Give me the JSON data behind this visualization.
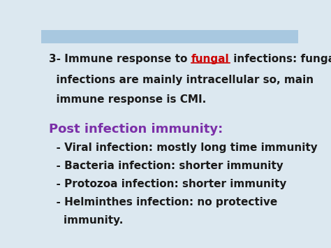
{
  "background_color": "#dce8f0",
  "header_bar_color": "#a8c8e0",
  "text_color_main": "#1a1a1a",
  "text_color_fungal": "#cc0000",
  "text_color_heading": "#7b2fa8",
  "line1_normal": "3- Immune response to ",
  "line1_fungal": "fungal",
  "line1_rest": " infections: fungal",
  "line2": "  infections are mainly intracellular so, main",
  "line3": "  immune response is CMI.",
  "heading": "Post infection immunity:",
  "bullet1": "  - Viral infection: mostly long time immunity",
  "bullet2": "  - Bacteria infection: shorter immunity",
  "bullet3": "  - Protozoa infection: shorter immunity",
  "bullet4": "  - Helminthes infection: no protective",
  "bullet5": "    immunity.",
  "font_size_body": 11.0,
  "font_size_heading": 13.0,
  "font_family": "DejaVu Sans"
}
